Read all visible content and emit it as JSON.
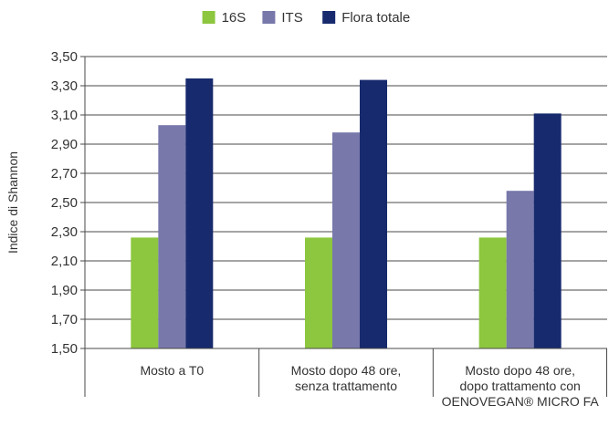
{
  "chart_data": {
    "type": "bar",
    "ylabel": "Indice di Shannon",
    "ylim": [
      1.5,
      3.5
    ],
    "yticks": [
      "1,50",
      "1,70",
      "1,90",
      "2,10",
      "2,30",
      "2,50",
      "2,70",
      "2,90",
      "3,10",
      "3,30",
      "3,50"
    ],
    "categories": [
      [
        "Mosto a T0"
      ],
      [
        "Mosto dopo 48 ore,",
        "senza trattamento"
      ],
      [
        "Mosto dopo 48 ore,",
        "dopo trattamento con",
        "OENOVEGAN® MICRO FA"
      ]
    ],
    "series": [
      {
        "name": "16S",
        "color": "#8dc63f",
        "values": [
          2.26,
          2.26,
          2.26
        ]
      },
      {
        "name": "ITS",
        "color": "#7878ab",
        "values": [
          3.03,
          2.98,
          2.58
        ]
      },
      {
        "name": "Flora totale",
        "color": "#172a6e",
        "values": [
          3.35,
          3.34,
          3.11
        ]
      }
    ],
    "grid": true,
    "legend": "top-center"
  }
}
